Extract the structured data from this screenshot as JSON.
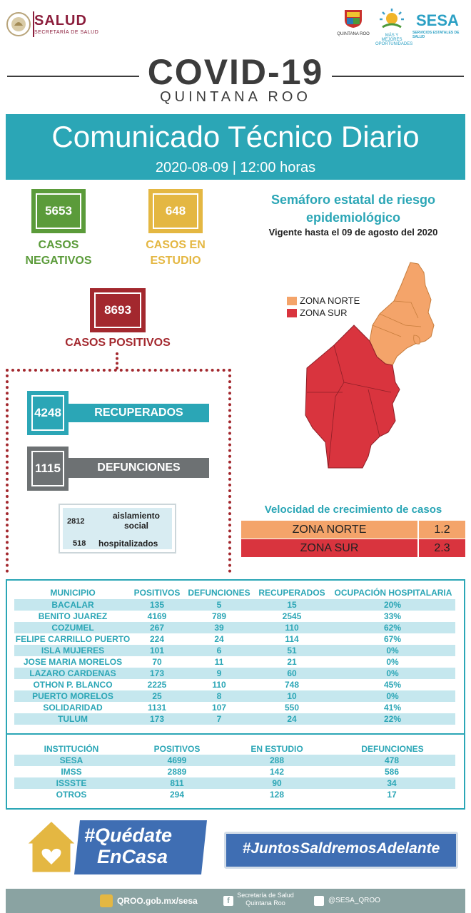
{
  "header": {
    "salud_title": "SALUD",
    "salud_sub": "SECRETARÍA DE SALUD",
    "qroo_text": "QUINTANA ROO",
    "oport_text": "MÁS Y MEJORES OPORTUNIDADES",
    "sesa_title": "SESA",
    "sesa_sub": "SERVICIOS ESTATALES DE SALUD"
  },
  "title": {
    "covid": "COVID-19",
    "region": "QUINTANA ROO",
    "banner_title": "Comunicado Técnico Diario",
    "banner_sub": "2020-08-09 | 12:00 horas"
  },
  "stats": {
    "negativos": {
      "value": "5653",
      "label_1": "CASOS",
      "label_2": "NEGATIVOS",
      "color": "#5b9b3a"
    },
    "estudio": {
      "value": "648",
      "label_1": "CASOS EN",
      "label_2": "ESTUDIO",
      "color": "#e4b742"
    },
    "positivos": {
      "value": "8693",
      "label": "CASOS POSITIVOS",
      "color": "#a3282e"
    },
    "recuperados": {
      "value": "4248",
      "label": "RECUPERADOS",
      "color": "#2ba6b6"
    },
    "defunciones": {
      "value": "1115",
      "label": "DEFUNCIONES",
      "color": "#6d7173"
    },
    "aislamiento": {
      "value": "2812",
      "label_1": "aislamiento",
      "label_2": "social"
    },
    "hospitalizados": {
      "value": "518",
      "label": "hospitalizados"
    }
  },
  "semaforo": {
    "title_1": "Semáforo estatal de riesgo",
    "title_2": "epidemiológico",
    "vigente": "Vigente hasta el 09 de agosto del 2020",
    "legend": [
      {
        "label": "ZONA NORTE",
        "color": "#f4a46a"
      },
      {
        "label": "ZONA SUR",
        "color": "#d9343e"
      }
    ]
  },
  "velocidad": {
    "title": "Velocidad de crecimiento de casos",
    "rows": [
      {
        "zone": "ZONA NORTE",
        "value": "1.2",
        "color": "#f4a46a"
      },
      {
        "zone": "ZONA SUR",
        "value": "2.3",
        "color": "#d9343e"
      }
    ]
  },
  "municipios": {
    "headers": [
      "MUNICIPIO",
      "POSITIVOS",
      "DEFUNCIONES",
      "RECUPERADOS",
      "OCUPACIÓN HOSPITALARIA"
    ],
    "rows": [
      [
        "BACALAR",
        "135",
        "5",
        "15",
        "20%"
      ],
      [
        "BENITO JUAREZ",
        "4169",
        "789",
        "2545",
        "33%"
      ],
      [
        "COZUMEL",
        "267",
        "39",
        "110",
        "62%"
      ],
      [
        "FELIPE CARRILLO PUERTO",
        "224",
        "24",
        "114",
        "67%"
      ],
      [
        "ISLA MUJERES",
        "101",
        "6",
        "51",
        "0%"
      ],
      [
        "JOSE MARIA MORELOS",
        "70",
        "11",
        "21",
        "0%"
      ],
      [
        "LAZARO CARDENAS",
        "173",
        "9",
        "60",
        "0%"
      ],
      [
        "OTHON P. BLANCO",
        "2225",
        "110",
        "748",
        "45%"
      ],
      [
        "PUERTO MORELOS",
        "25",
        "8",
        "10",
        "0%"
      ],
      [
        "SOLIDARIDAD",
        "1131",
        "107",
        "550",
        "41%"
      ],
      [
        "TULUM",
        "173",
        "7",
        "24",
        "22%"
      ]
    ]
  },
  "instituciones": {
    "headers": [
      "INSTITUCIÓN",
      "POSITIVOS",
      "EN ESTUDIO",
      "DEFUNCIONES"
    ],
    "rows": [
      [
        "SESA",
        "4699",
        "288",
        "478"
      ],
      [
        "IMSS",
        "2889",
        "142",
        "586"
      ],
      [
        "ISSSTE",
        "811",
        "90",
        "34"
      ],
      [
        "OTROS",
        "294",
        "128",
        "17"
      ]
    ]
  },
  "hashtags": {
    "quedate_1": "#Quédate",
    "quedate_2": "EnCasa",
    "juntos": "#JuntosSaldremosAdelante"
  },
  "footer": {
    "web": "QROO.gob.mx/sesa",
    "fb_1": "Secretaría de Salud",
    "fb_2": "Quintana Roo",
    "tw": "@SESA_QROO"
  }
}
